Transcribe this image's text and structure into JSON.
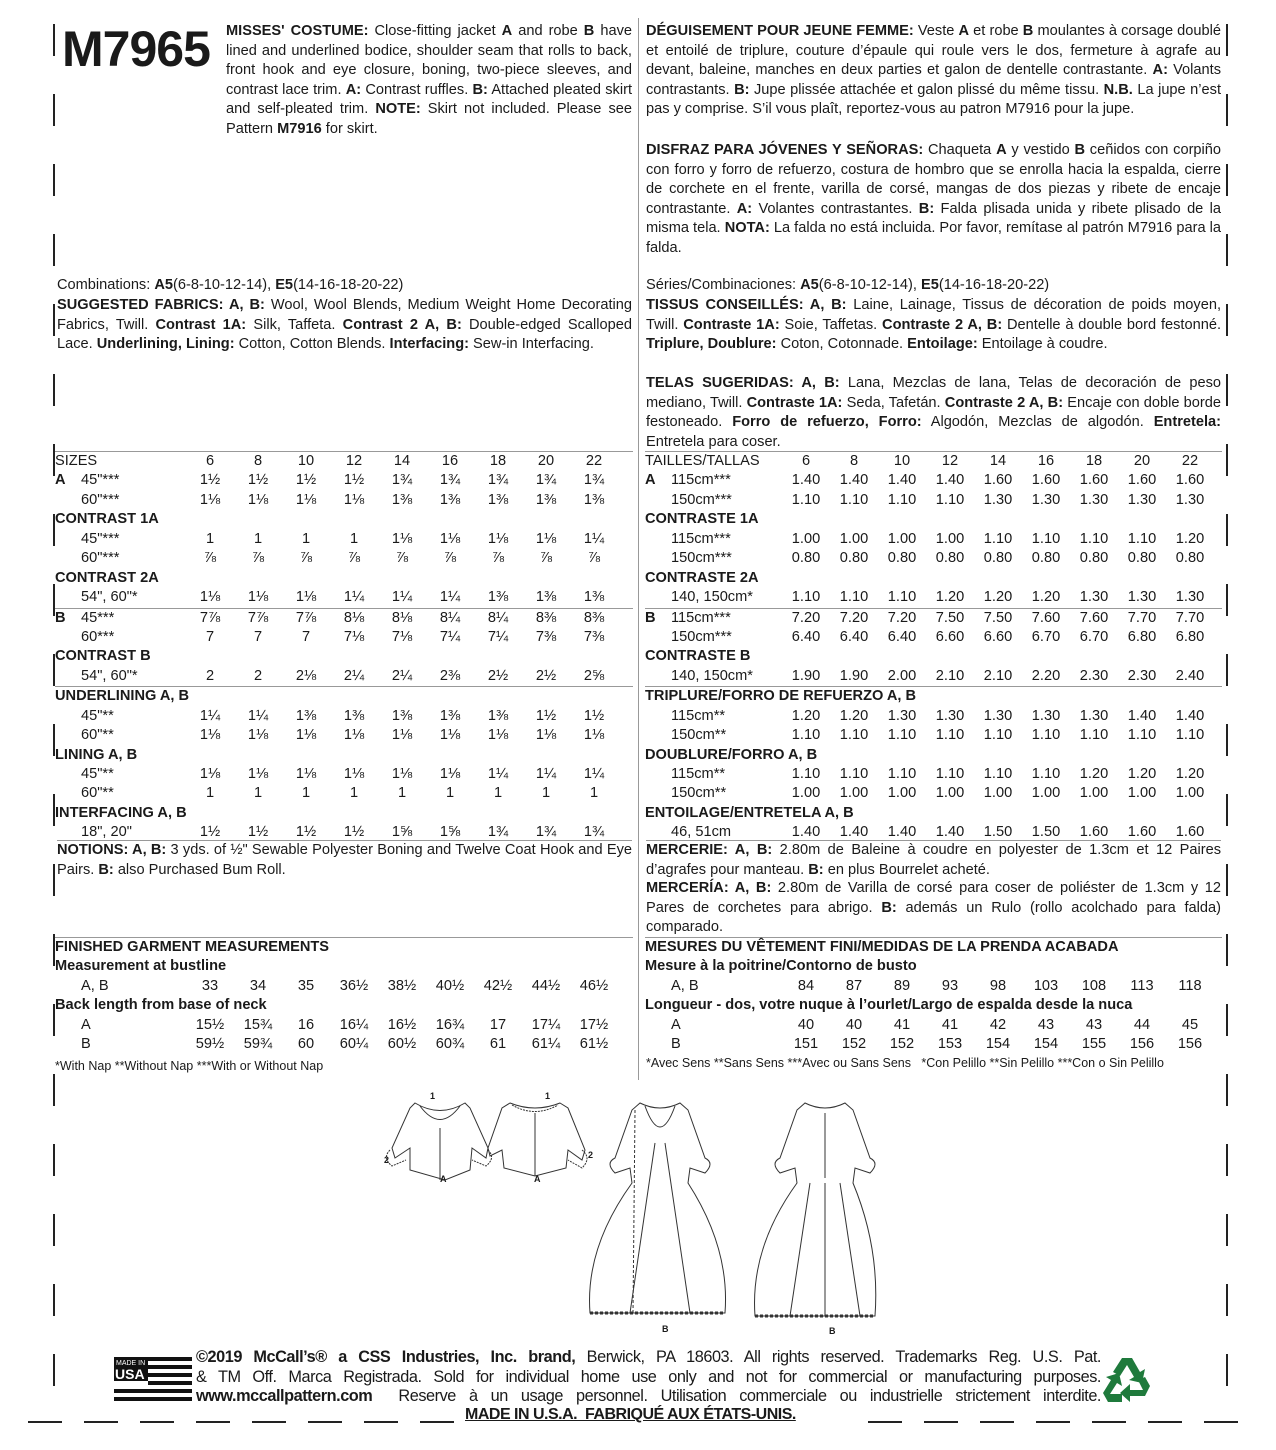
{
  "pattern_number": "M7965",
  "description": {
    "en": [
      [
        "b",
        "MISSES' COSTUME:"
      ],
      [
        "n",
        " Close-fitting jacket "
      ],
      [
        "b",
        "A"
      ],
      [
        "n",
        " and robe "
      ],
      [
        "b",
        "B"
      ],
      [
        "n",
        " have lined and underlined bodice, shoulder seam that rolls to back, front hook and eye closure, boning, two-piece sleeves, and contrast lace trim. "
      ],
      [
        "b",
        "A:"
      ],
      [
        "n",
        " Contrast ruffles. "
      ],
      [
        "b",
        "B:"
      ],
      [
        "n",
        " Attached pleated skirt and self-pleated trim. "
      ],
      [
        "b",
        "NOTE:"
      ],
      [
        "n",
        " Skirt not included. Please see Pattern "
      ],
      [
        "b",
        "M7916"
      ],
      [
        "n",
        " for skirt."
      ]
    ],
    "fr": [
      [
        "b",
        "DÉGUISEMENT POUR JEUNE FEMME:"
      ],
      [
        "n",
        " Veste "
      ],
      [
        "b",
        "A"
      ],
      [
        "n",
        " et robe "
      ],
      [
        "b",
        "B"
      ],
      [
        "n",
        " moulantes à corsage doublé et entoilé de triplure, couture d’épaule qui roule vers le dos, fermeture à agrafe au devant, baleine, manches en deux parties et galon de dentelle contrastante. "
      ],
      [
        "b",
        "A:"
      ],
      [
        "n",
        " Volants contrastants. "
      ],
      [
        "b",
        "B:"
      ],
      [
        "n",
        " Jupe plissée attachée et galon plissé du même tissu. "
      ],
      [
        "b",
        "N.B."
      ],
      [
        "n",
        " La jupe n’est pas y comprise. S’il vous plaît, reportez-vous au patron M7916 pour la jupe."
      ]
    ],
    "es": [
      [
        "b",
        "DISFRAZ PARA JÓVENES Y SEÑORAS:"
      ],
      [
        "n",
        " Chaqueta "
      ],
      [
        "b",
        "A"
      ],
      [
        "n",
        " y vestido "
      ],
      [
        "b",
        "B"
      ],
      [
        "n",
        " ceñidos con corpiño con forro y forro de refuerzo, costura de hombro que se enrolla hacia la espalda, cierre de corchete en el frente, varilla de corsé, mangas de dos piezas y ribete de encaje contrastante. "
      ],
      [
        "b",
        "A:"
      ],
      [
        "n",
        " Volantes contrastantes. "
      ],
      [
        "b",
        "B:"
      ],
      [
        "n",
        " Falda plisada unida y ribete plisado de la misma tela. "
      ],
      [
        "b",
        "NOTA:"
      ],
      [
        "n",
        " La falda no está incluida. Por favor, remítase al patrón M7916 para la falda."
      ]
    ]
  },
  "combinations": {
    "en": [
      [
        "n",
        "Combinations: "
      ],
      [
        "b",
        "A5"
      ],
      [
        "n",
        "(6-8-10-12-14), "
      ],
      [
        "b",
        "E5"
      ],
      [
        "n",
        "(14-16-18-20-22)"
      ]
    ],
    "fr_es": [
      [
        "n",
        "Séries/Combinaciones: "
      ],
      [
        "b",
        "A5"
      ],
      [
        "n",
        "(6-8-10-12-14), "
      ],
      [
        "b",
        "E5"
      ],
      [
        "n",
        "(14-16-18-20-22)"
      ]
    ]
  },
  "fabrics": {
    "en": [
      [
        "b",
        "SUGGESTED FABRICS: A, B:"
      ],
      [
        "n",
        " Wool, Wool Blends, Medium Weight Home Decorating Fabrics, Twill. "
      ],
      [
        "b",
        "Contrast 1A:"
      ],
      [
        "n",
        " Silk, Taffeta. "
      ],
      [
        "b",
        "Contrast 2 A, B:"
      ],
      [
        "n",
        " Double-edged Scalloped Lace. "
      ],
      [
        "b",
        "Underlining, Lining:"
      ],
      [
        "n",
        " Cotton, Cotton Blends. "
      ],
      [
        "b",
        "Interfacing:"
      ],
      [
        "n",
        " Sew-in Interfacing."
      ]
    ],
    "fr": [
      [
        "b",
        "TISSUS CONSEILLÉS: A, B:"
      ],
      [
        "n",
        " Laine, Lainage, Tissus de décoration de poids moyen, Twill. "
      ],
      [
        "b",
        "Contraste 1A:"
      ],
      [
        "n",
        " Soie, Taffetas. "
      ],
      [
        "b",
        "Contraste 2 A, B:"
      ],
      [
        "n",
        " Dentelle à double bord festonné. "
      ],
      [
        "b",
        "Triplure, Doublure:"
      ],
      [
        "n",
        " Coton, Cotonnade. "
      ],
      [
        "b",
        "Entoilage:"
      ],
      [
        "n",
        " Entoilage à coudre."
      ]
    ],
    "es": [
      [
        "b",
        "TELAS SUGERIDAS: A, B:"
      ],
      [
        "n",
        " Lana, Mezclas de lana, Telas de decoración de peso mediano, Twill. "
      ],
      [
        "b",
        "Contraste 1A:"
      ],
      [
        "n",
        " Seda, Tafetán. "
      ],
      [
        "b",
        "Contraste 2 A, B:"
      ],
      [
        "n",
        " Encaje con doble borde festoneado. "
      ],
      [
        "b",
        "Forro de refuerzo, Forro:"
      ],
      [
        "n",
        " Algodón, Mezclas de algodón. "
      ],
      [
        "b",
        "Entretela:"
      ],
      [
        "n",
        " Entretela para coser."
      ]
    ]
  },
  "yardage_en": [
    {
      "type": "header",
      "label": "SIZES",
      "values": [
        "6",
        "8",
        "10",
        "12",
        "14",
        "16",
        "18",
        "20",
        "22"
      ],
      "line": true
    },
    {
      "type": "row",
      "prefix": "A",
      "label": "45\"***",
      "values": [
        "1½",
        "1½",
        "1½",
        "1½",
        "1¾",
        "1¾",
        "1¾",
        "1¾",
        "1¾"
      ]
    },
    {
      "type": "row",
      "label": "60\"***",
      "values": [
        "1⅛",
        "1⅛",
        "1⅛",
        "1⅛",
        "1⅜",
        "1⅜",
        "1⅜",
        "1⅜",
        "1⅜"
      ]
    },
    {
      "type": "head",
      "label": "CONTRAST 1A"
    },
    {
      "type": "row",
      "label": "45\"***",
      "values": [
        "1",
        "1",
        "1",
        "1",
        "1⅛",
        "1⅛",
        "1⅛",
        "1⅛",
        "1¼"
      ]
    },
    {
      "type": "row",
      "label": "60\"***",
      "values": [
        "⅞",
        "⅞",
        "⅞",
        "⅞",
        "⅞",
        "⅞",
        "⅞",
        "⅞",
        "⅞"
      ]
    },
    {
      "type": "head",
      "label": "CONTRAST 2A"
    },
    {
      "type": "row",
      "label": "54\", 60\"*",
      "values": [
        "1⅛",
        "1⅛",
        "1⅛",
        "1¼",
        "1¼",
        "1¼",
        "1⅜",
        "1⅜",
        "1⅜"
      ]
    },
    {
      "type": "row",
      "prefix": "B",
      "label": "45***",
      "values": [
        "7⅞",
        "7⅞",
        "7⅞",
        "8⅛",
        "8⅛",
        "8¼",
        "8¼",
        "8⅜",
        "8⅜"
      ],
      "line": true
    },
    {
      "type": "row",
      "label": "60***",
      "values": [
        "7",
        "7",
        "7",
        "7⅛",
        "7⅛",
        "7¼",
        "7¼",
        "7⅜",
        "7⅜"
      ]
    },
    {
      "type": "head",
      "label": "CONTRAST B"
    },
    {
      "type": "row",
      "label": "54\", 60\"*",
      "values": [
        "2",
        "2",
        "2⅛",
        "2¼",
        "2¼",
        "2⅜",
        "2½",
        "2½",
        "2⅝"
      ]
    },
    {
      "type": "head",
      "label": "UNDERLINING A, B",
      "line": true
    },
    {
      "type": "row",
      "label": "45\"**",
      "values": [
        "1¼",
        "1¼",
        "1⅜",
        "1⅜",
        "1⅜",
        "1⅜",
        "1⅜",
        "1½",
        "1½"
      ]
    },
    {
      "type": "row",
      "label": "60\"**",
      "values": [
        "1⅛",
        "1⅛",
        "1⅛",
        "1⅛",
        "1⅛",
        "1⅛",
        "1⅛",
        "1⅛",
        "1⅛"
      ]
    },
    {
      "type": "head",
      "label": "LINING A, B"
    },
    {
      "type": "row",
      "label": "45\"**",
      "values": [
        "1⅛",
        "1⅛",
        "1⅛",
        "1⅛",
        "1⅛",
        "1⅛",
        "1¼",
        "1¼",
        "1¼"
      ]
    },
    {
      "type": "row",
      "label": "60\"**",
      "values": [
        "1",
        "1",
        "1",
        "1",
        "1",
        "1",
        "1",
        "1",
        "1"
      ]
    },
    {
      "type": "head",
      "label": "INTERFACING A, B"
    },
    {
      "type": "row",
      "label": "18\", 20\"",
      "values": [
        "1½",
        "1½",
        "1½",
        "1½",
        "1⅝",
        "1⅝",
        "1¾",
        "1¾",
        "1¾"
      ]
    }
  ],
  "yardage_fr_es": [
    {
      "type": "header",
      "label": "TAILLES/TALLAS",
      "values": [
        "6",
        "8",
        "10",
        "12",
        "14",
        "16",
        "18",
        "20",
        "22"
      ],
      "line": true
    },
    {
      "type": "row",
      "prefix": "A",
      "label": "115cm***",
      "values": [
        "1.40",
        "1.40",
        "1.40",
        "1.40",
        "1.60",
        "1.60",
        "1.60",
        "1.60",
        "1.60"
      ]
    },
    {
      "type": "row",
      "label": "150cm***",
      "values": [
        "1.10",
        "1.10",
        "1.10",
        "1.10",
        "1.30",
        "1.30",
        "1.30",
        "1.30",
        "1.30"
      ]
    },
    {
      "type": "head",
      "label": "CONTRASTE 1A"
    },
    {
      "type": "row",
      "label": "115cm***",
      "values": [
        "1.00",
        "1.00",
        "1.00",
        "1.00",
        "1.10",
        "1.10",
        "1.10",
        "1.10",
        "1.20"
      ]
    },
    {
      "type": "row",
      "label": "150cm***",
      "values": [
        "0.80",
        "0.80",
        "0.80",
        "0.80",
        "0.80",
        "0.80",
        "0.80",
        "0.80",
        "0.80"
      ]
    },
    {
      "type": "head",
      "label": "CONTRASTE 2A"
    },
    {
      "type": "row",
      "label": "140, 150cm*",
      "values": [
        "1.10",
        "1.10",
        "1.10",
        "1.20",
        "1.20",
        "1.20",
        "1.30",
        "1.30",
        "1.30"
      ]
    },
    {
      "type": "row",
      "prefix": "B",
      "label": "115cm***",
      "values": [
        "7.20",
        "7.20",
        "7.20",
        "7.50",
        "7.50",
        "7.60",
        "7.60",
        "7.70",
        "7.70"
      ],
      "line": true
    },
    {
      "type": "row",
      "label": "150cm***",
      "values": [
        "6.40",
        "6.40",
        "6.40",
        "6.60",
        "6.60",
        "6.70",
        "6.70",
        "6.80",
        "6.80"
      ]
    },
    {
      "type": "head",
      "label": "CONTRASTE B"
    },
    {
      "type": "row",
      "label": "140, 150cm*",
      "values": [
        "1.90",
        "1.90",
        "2.00",
        "2.10",
        "2.10",
        "2.20",
        "2.30",
        "2.30",
        "2.40"
      ]
    },
    {
      "type": "head",
      "label": "TRIPLURE/FORRO DE REFUERZO A, B",
      "line": true
    },
    {
      "type": "row",
      "label": "115cm**",
      "values": [
        "1.20",
        "1.20",
        "1.30",
        "1.30",
        "1.30",
        "1.30",
        "1.30",
        "1.40",
        "1.40"
      ]
    },
    {
      "type": "row",
      "label": "150cm**",
      "values": [
        "1.10",
        "1.10",
        "1.10",
        "1.10",
        "1.10",
        "1.10",
        "1.10",
        "1.10",
        "1.10"
      ]
    },
    {
      "type": "head",
      "label": "DOUBLURE/FORRO A, B"
    },
    {
      "type": "row",
      "label": "115cm**",
      "values": [
        "1.10",
        "1.10",
        "1.10",
        "1.10",
        "1.10",
        "1.10",
        "1.20",
        "1.20",
        "1.20"
      ]
    },
    {
      "type": "row",
      "label": "150cm**",
      "values": [
        "1.00",
        "1.00",
        "1.00",
        "1.00",
        "1.00",
        "1.00",
        "1.00",
        "1.00",
        "1.00"
      ]
    },
    {
      "type": "head",
      "label": "ENTOILAGE/ENTRETELA A, B"
    },
    {
      "type": "row",
      "label": "46, 51cm",
      "values": [
        "1.40",
        "1.40",
        "1.40",
        "1.40",
        "1.50",
        "1.50",
        "1.60",
        "1.60",
        "1.60"
      ]
    }
  ],
  "notions": {
    "en": [
      [
        "b",
        "NOTIONS: A, B:"
      ],
      [
        "n",
        " 3 yds. of ½\" Sewable Polyester Boning and Twelve Coat Hook and Eye Pairs. "
      ],
      [
        "b",
        "B:"
      ],
      [
        "n",
        " also Purchased Bum Roll."
      ]
    ],
    "fr": [
      [
        "b",
        "MERCERIE: A, B:"
      ],
      [
        "n",
        " 2.80m de Baleine à coudre en polyester de 1.3cm et 12 Paires d’agrafes pour manteau. "
      ],
      [
        "b",
        "B:"
      ],
      [
        "n",
        " en plus Bourrelet acheté."
      ]
    ],
    "es": [
      [
        "b",
        "MERCERÍA: A, B:"
      ],
      [
        "n",
        " 2.80m de Varilla de corsé para coser de poliéster de 1.3cm y 12 Pares de corchetes para abrigo. "
      ],
      [
        "b",
        "B:"
      ],
      [
        "n",
        " además un Rulo (rollo acolchado para falda) comparado."
      ]
    ]
  },
  "measurements_en": [
    {
      "type": "head",
      "label": "FINISHED GARMENT MEASUREMENTS",
      "line": true
    },
    {
      "type": "head",
      "label": "Measurement at bustline"
    },
    {
      "type": "row",
      "label": "A, B",
      "values": [
        "33",
        "34",
        "35",
        "36½",
        "38½",
        "40½",
        "42½",
        "44½",
        "46½"
      ]
    },
    {
      "type": "head",
      "label": "Back length from base of neck"
    },
    {
      "type": "row",
      "label": "A",
      "values": [
        "15½",
        "15¾",
        "16",
        "16¼",
        "16½",
        "16¾",
        "17",
        "17¼",
        "17½"
      ]
    },
    {
      "type": "row",
      "label": "B",
      "values": [
        "59½",
        "59¾",
        "60",
        "60¼",
        "60½",
        "60¾",
        "61",
        "61¼",
        "61½"
      ]
    }
  ],
  "measurements_fr_es": [
    {
      "type": "head",
      "label": "MESURES DU VÊTEMENT FINI/MEDIDAS DE LA PRENDA ACABADA",
      "line": true
    },
    {
      "type": "head",
      "label": "Mesure à la poitrine/Contorno de busto"
    },
    {
      "type": "row",
      "label": "A, B",
      "values": [
        "84",
        "87",
        "89",
        "93",
        "98",
        "103",
        "108",
        "113",
        "118"
      ]
    },
    {
      "type": "head",
      "label": "Longueur - dos, votre nuque à l’ourlet/Largo de espalda desde la nuca"
    },
    {
      "type": "row",
      "label": "A",
      "values": [
        "40",
        "40",
        "41",
        "41",
        "42",
        "43",
        "43",
        "44",
        "45"
      ]
    },
    {
      "type": "row",
      "label": "B",
      "values": [
        "151",
        "152",
        "152",
        "153",
        "154",
        "154",
        "155",
        "156",
        "156"
      ]
    }
  ],
  "footnotes": {
    "en": "*With Nap **Without Nap ***With or Without Nap",
    "fr_es": "*Avec Sens **Sans Sens ***Avec ou Sans Sens   *Con Pelillo **Sin Pelillo ***Con o Sin Pelillo"
  },
  "illustration_labels": {
    "view_1": "1",
    "view_2": "2",
    "view_a": "A",
    "view_b": "B"
  },
  "footer": {
    "made_in_usa_logo": "MADE IN USA",
    "line1_bold": "©2019 McCall’s® a CSS Industries, Inc. brand,",
    "line1": " Berwick, PA 18603. All rights reserved. Trademarks Reg. U.S. Pat.",
    "line2": "& TM Off. Marca Registrada. Sold for individual home use only and not for commercial or manufacturing purposes.",
    "line3_bold": "www.mccallpattern.com",
    "line3": "  Reserve à un usage personnel. Utilisation commerciale ou industrielle strictement interdite.",
    "made_in": "MADE IN U.S.A.  FABRIQUÉ AUX ÉTATS-UNIS.",
    "recycle_icon": "recycle-icon",
    "recycle_color": "#1f7a3c"
  }
}
